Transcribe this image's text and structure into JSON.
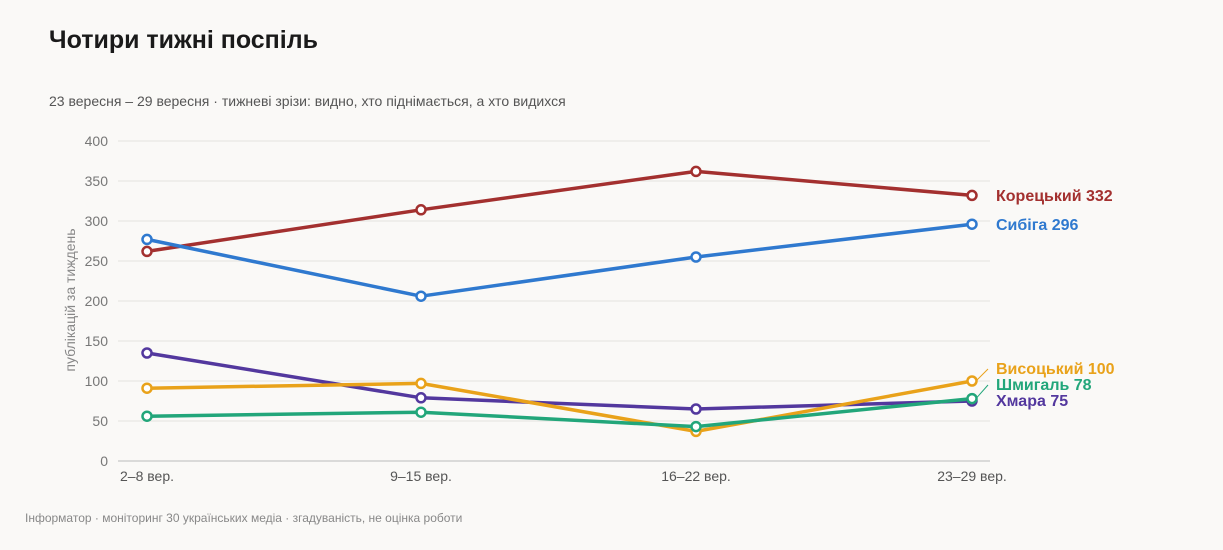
{
  "title": "Чотири тижні поспіль",
  "subtitle": "23 вересня – 29 вересня · тижневі зрізи: видно, хто піднімається, а хто видихся",
  "footer": "Інформатор · моніторинг 30 українських медіа · згадуваність, не оцінка роботи",
  "chart_data": {
    "type": "line",
    "title": "Чотири тижні поспіль",
    "ylabel": "публікацій за тиждень",
    "xlabel": "",
    "categories": [
      "2–8 вер.",
      "9–15 вер.",
      "16–22 вер.",
      "23–29 вер."
    ],
    "ylim": [
      0,
      400
    ],
    "yticks": [
      0,
      50,
      100,
      150,
      200,
      250,
      300,
      350,
      400
    ],
    "grid": true,
    "legend": "end-labels-right",
    "series": [
      {
        "name": "Корецький",
        "values": [
          262,
          314,
          362,
          332
        ],
        "color": "#a3302f",
        "end_label": "Корецький 332"
      },
      {
        "name": "Сибіга",
        "values": [
          277,
          206,
          255,
          296
        ],
        "color": "#2f79cf",
        "end_label": "Сибіга 296"
      },
      {
        "name": "Хмара",
        "values": [
          135,
          79,
          65,
          75
        ],
        "color": "#53389e",
        "end_label": "Хмара 75"
      },
      {
        "name": "Висоцький",
        "values": [
          91,
          97,
          37,
          100
        ],
        "color": "#e9a21a",
        "end_label": "Висоцький 100"
      },
      {
        "name": "Шмигаль",
        "values": [
          56,
          61,
          43,
          78
        ],
        "color": "#22a67a",
        "end_label": "Шмигаль 78"
      }
    ]
  }
}
